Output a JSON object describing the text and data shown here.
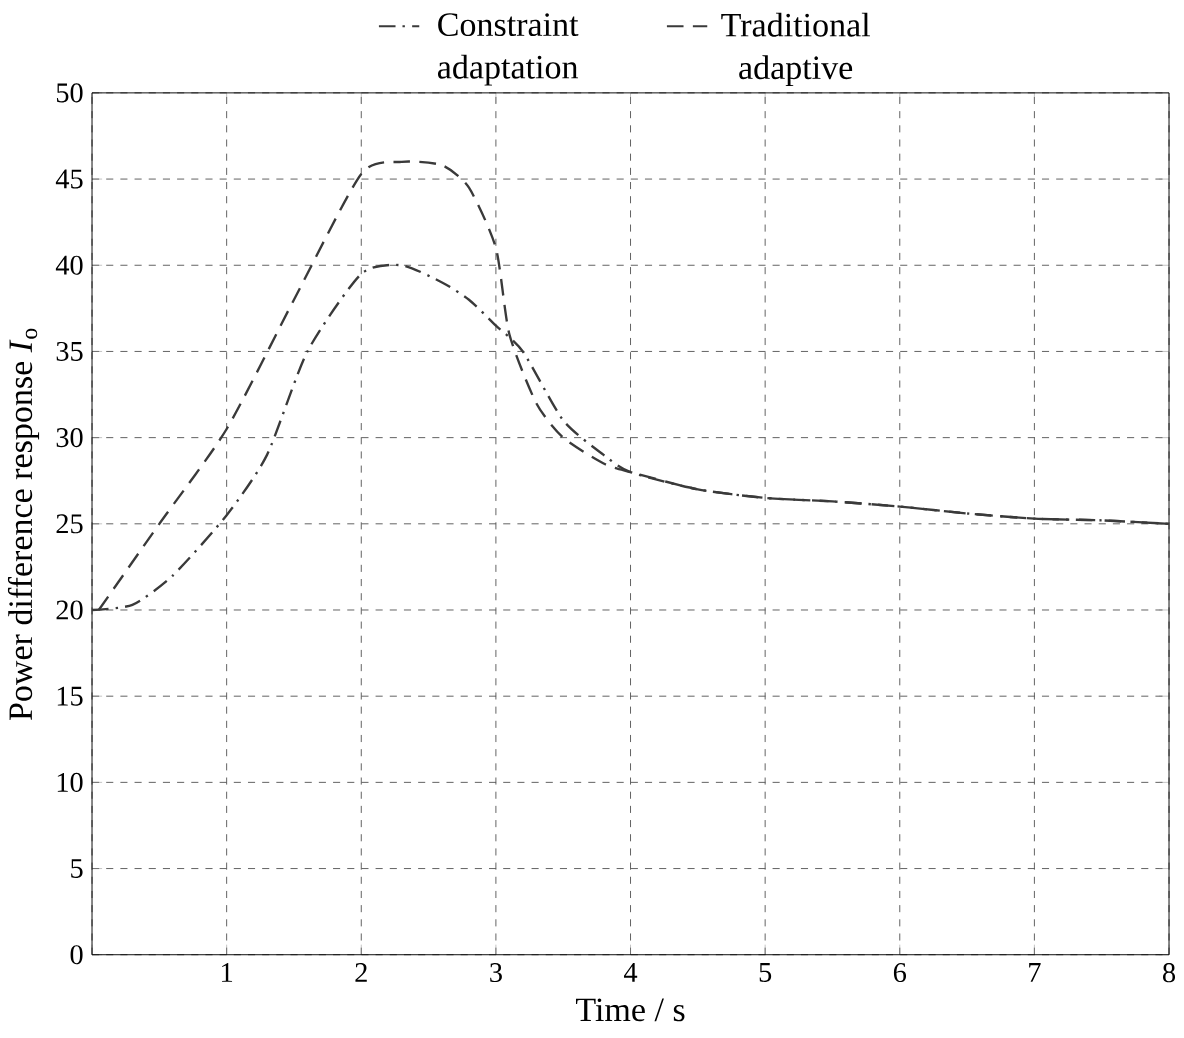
{
  "chart_data": {
    "type": "line",
    "xlabel": "Time / s",
    "ylabel": "Power difference response *I*$_{o}$",
    "xlim": [
      0,
      8
    ],
    "ylim": [
      0,
      50
    ],
    "xticks": [
      {
        "value": 0,
        "label": null
      },
      1,
      2,
      3,
      4,
      5,
      6,
      7,
      8
    ],
    "yticks": [
      0,
      5,
      10,
      15,
      20,
      25,
      30,
      35,
      40,
      45,
      50
    ],
    "grid": true,
    "legend": "top",
    "series": [
      {
        "name": "Constraint adaptation",
        "color": "#3a3a3a",
        "line_style": "dashdot",
        "x": [
          0,
          0.3,
          0.6,
          1,
          1.3,
          1.6,
          2,
          2.3,
          2.6,
          2.8,
          3,
          3.2,
          3.5,
          3.8,
          4,
          4.5,
          5,
          5.5,
          6,
          6.5,
          7,
          7.5,
          8
        ],
        "values": [
          20,
          20.3,
          22,
          25.5,
          29,
          35,
          39.5,
          40,
          39,
          38,
          36.5,
          35,
          31,
          29,
          28,
          27,
          26.5,
          26.3,
          26,
          25.6,
          25.3,
          25.2,
          25
        ]
      },
      {
        "name": "Traditional adaptive",
        "color": "#3a3a3a",
        "line_style": "dashed",
        "x": [
          0.05,
          0.5,
          1,
          1.5,
          2,
          2.3,
          2.6,
          2.8,
          3,
          3.1,
          3.3,
          3.5,
          3.8,
          4,
          4.5,
          5,
          5.5,
          6,
          6.5,
          7,
          7.5,
          8
        ],
        "values": [
          20,
          25,
          30.5,
          38,
          45.3,
          46,
          45.8,
          44.5,
          41,
          36,
          32,
          30,
          28.5,
          28,
          27,
          26.5,
          26.3,
          26,
          25.6,
          25.3,
          25.2,
          25
        ]
      }
    ]
  }
}
